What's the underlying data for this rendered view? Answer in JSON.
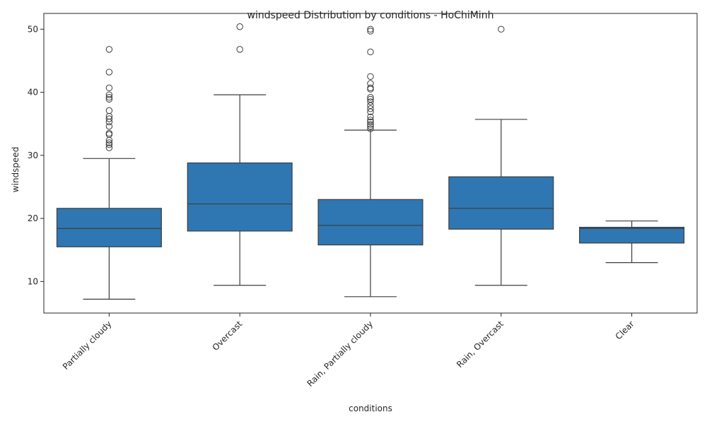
{
  "chart_data": {
    "type": "box",
    "title": "windspeed Distribution by conditions - HoChiMinh",
    "xlabel": "conditions",
    "ylabel": "windspeed",
    "ylim": [
      5,
      52.5
    ],
    "yticks": [
      10,
      20,
      30,
      40,
      50
    ],
    "grid": false,
    "legend": "none",
    "colors": {
      "box": "#2f77b2",
      "line": "#3d3d3d",
      "frame": "#262626"
    },
    "categories": [
      "Partially cloudy",
      "Overcast",
      "Rain, Partially cloudy",
      "Rain, Overcast",
      "Clear"
    ],
    "boxes": [
      {
        "category": "Partially cloudy",
        "whisker_low": 7.2,
        "q1": 15.5,
        "median": 18.4,
        "q3": 21.6,
        "whisker_high": 29.5,
        "outliers": [
          31.2,
          31.7,
          32.0,
          32.4,
          33.3,
          33.5,
          34.6,
          35.3,
          35.8,
          36.2,
          37.1,
          38.9,
          39.2,
          39.6,
          40.7,
          43.2,
          46.8
        ]
      },
      {
        "category": "Overcast",
        "whisker_low": 9.4,
        "q1": 18.0,
        "median": 22.3,
        "q3": 28.8,
        "whisker_high": 39.6,
        "outliers": [
          46.8,
          50.4
        ]
      },
      {
        "category": "Rain, Partially cloudy",
        "whisker_low": 7.6,
        "q1": 15.8,
        "median": 18.9,
        "q3": 23.0,
        "whisker_high": 34.0,
        "outliers": [
          34.2,
          34.6,
          34.9,
          35.3,
          35.6,
          36.1,
          36.9,
          37.4,
          37.9,
          38.5,
          38.9,
          39.2,
          40.5,
          40.7,
          41.4,
          42.5,
          46.4,
          49.7,
          50.0
        ]
      },
      {
        "category": "Rain, Overcast",
        "whisker_low": 9.4,
        "q1": 18.3,
        "median": 21.6,
        "q3": 26.6,
        "whisker_high": 35.7,
        "outliers": [
          50.0
        ]
      },
      {
        "category": "Clear",
        "whisker_low": 13.0,
        "q1": 16.1,
        "median": 18.4,
        "q3": 18.6,
        "whisker_high": 19.6,
        "outliers": []
      }
    ]
  }
}
